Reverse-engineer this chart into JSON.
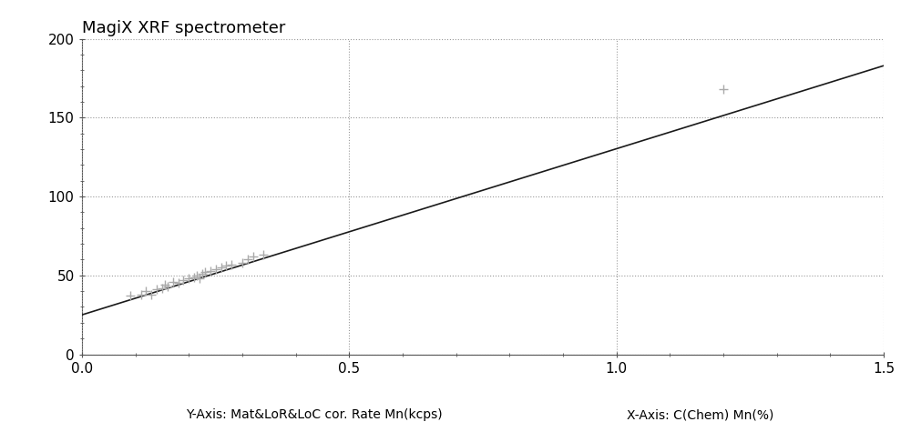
{
  "title": "MagiX XRF spectrometer",
  "xlabel_left": "Y-Axis: Mat&LoR&LoC cor. Rate Mn(kcps)",
  "xlabel_right": "X-Axis: C(Chem) Mn(%)",
  "xlim": [
    0.0,
    1.5
  ],
  "ylim": [
    0,
    200
  ],
  "xticks": [
    0.0,
    0.5,
    1.0,
    1.5
  ],
  "yticks": [
    0,
    50,
    100,
    150,
    200
  ],
  "line_x0": 0.0,
  "line_x1": 1.5,
  "line_y0": 25.0,
  "line_y1": 183.0,
  "scatter_points": [
    [
      0.09,
      37
    ],
    [
      0.11,
      38
    ],
    [
      0.12,
      40
    ],
    [
      0.13,
      38
    ],
    [
      0.14,
      41
    ],
    [
      0.15,
      42
    ],
    [
      0.155,
      44
    ],
    [
      0.16,
      43
    ],
    [
      0.17,
      46
    ],
    [
      0.18,
      45
    ],
    [
      0.19,
      47
    ],
    [
      0.2,
      48
    ],
    [
      0.21,
      49
    ],
    [
      0.215,
      50
    ],
    [
      0.22,
      48
    ],
    [
      0.225,
      51
    ],
    [
      0.23,
      52
    ],
    [
      0.24,
      53
    ],
    [
      0.25,
      54
    ],
    [
      0.26,
      55
    ],
    [
      0.27,
      56
    ],
    [
      0.28,
      57
    ],
    [
      0.3,
      58
    ],
    [
      0.31,
      60
    ],
    [
      0.32,
      62
    ],
    [
      0.34,
      63
    ],
    [
      1.2,
      168
    ]
  ],
  "scatter_color": "#aaaaaa",
  "line_color": "#1a1a1a",
  "grid_color": "#999999",
  "spine_color": "#555555",
  "background_color": "#ffffff",
  "title_fontsize": 13,
  "label_fontsize": 10,
  "tick_fontsize": 11
}
